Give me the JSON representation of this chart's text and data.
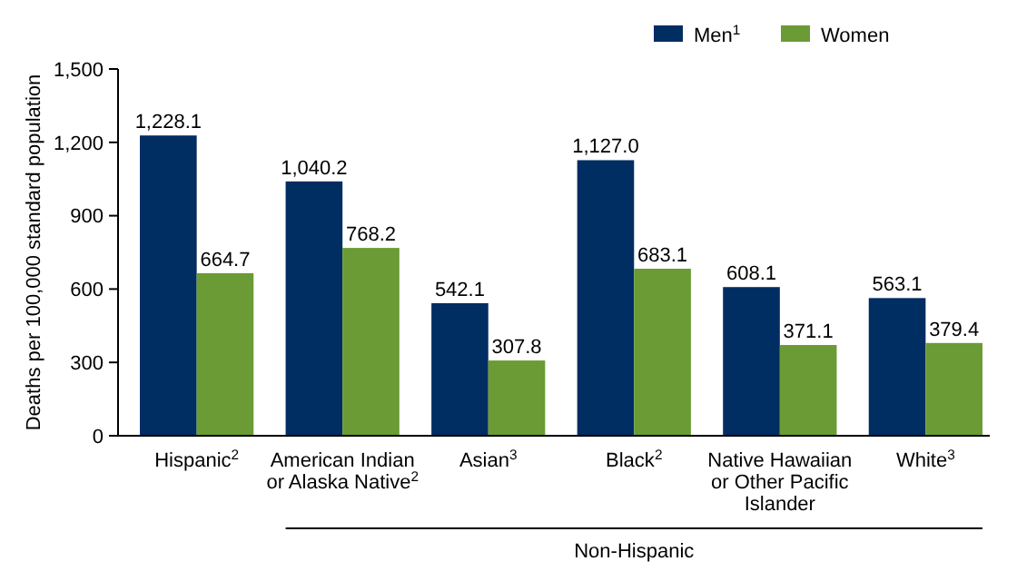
{
  "chart_data": {
    "type": "bar",
    "ylabel": "Deaths per 100,000 standard population",
    "categories": [
      "Hispanic$^{2}$",
      "American Indian\nor Alaska Native$^{2}$",
      "Asian$^{3}$",
      "Black$^{2}$",
      "Native Hawaiian\nor Other Pacific\nIslander",
      "White$^{3}$"
    ],
    "series": [
      {
        "name": "Men$^{1}$",
        "color": "#002d62",
        "values": [
          1228.1,
          1040.2,
          542.1,
          1127.0,
          608.1,
          563.1
        ],
        "value_labels": [
          "1,228.1",
          "1,040.2",
          "542.1",
          "1,127.0",
          "608.1",
          "563.1"
        ]
      },
      {
        "name": "Women",
        "color": "#6a9b34",
        "values": [
          664.7,
          768.2,
          307.8,
          683.1,
          371.1,
          379.4
        ],
        "value_labels": [
          "664.7",
          "768.2",
          "307.8",
          "683.1",
          "371.1",
          "379.4"
        ]
      }
    ],
    "ylim": [
      0,
      1500
    ],
    "yticks": [
      0,
      {
        "value": 300,
        "label": "300"
      },
      {
        "value": 600,
        "label": "600"
      },
      {
        "value": 900,
        "label": "900"
      },
      {
        "value": 1200,
        "label": "1,200"
      },
      {
        "value": 1500,
        "label": "1,500"
      }
    ],
    "grid": false,
    "legend": "top right",
    "annotations": [
      "Non-Hispanic"
    ]
  }
}
